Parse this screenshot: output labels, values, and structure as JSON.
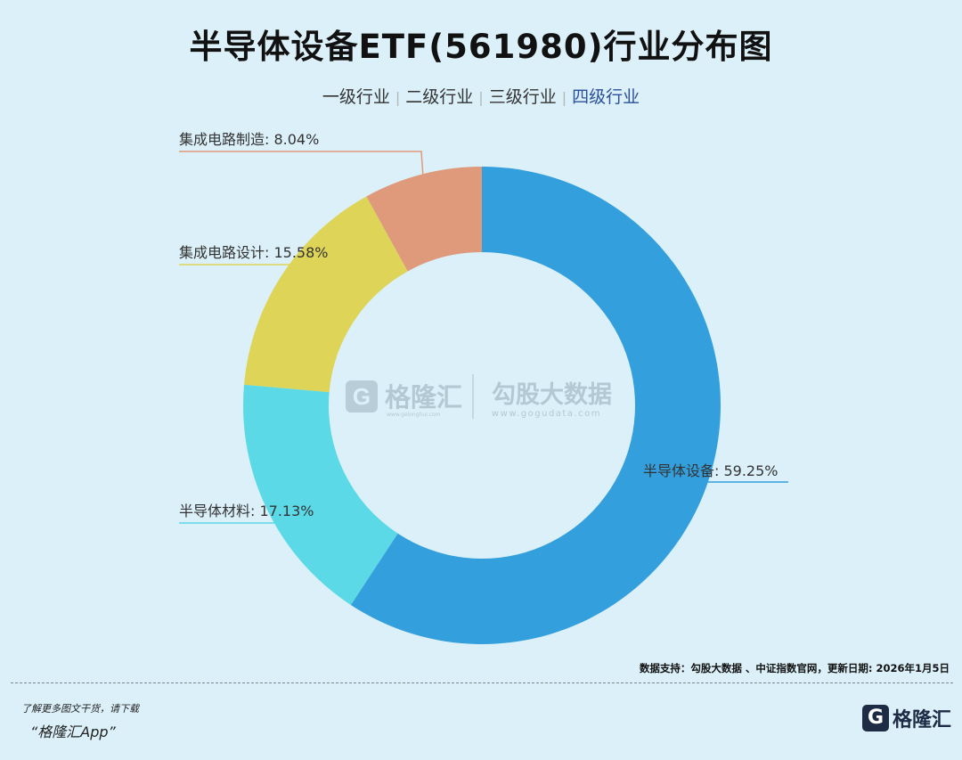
{
  "header": {
    "title": "半导体设备ETF(561980)行业分布图"
  },
  "tabs": [
    {
      "label": "一级行业",
      "active": false
    },
    {
      "label": "二级行业",
      "active": false
    },
    {
      "label": "三级行业",
      "active": false
    },
    {
      "label": "四级行业",
      "active": true
    }
  ],
  "watermark": {
    "left_name": "格隆汇",
    "left_url": "www.gelonghui.com",
    "right_name": "勾股大数据",
    "right_url": "www.gogudata.com"
  },
  "chart_data": {
    "type": "pie",
    "donut": true,
    "slices": [
      {
        "label": "半导体设备",
        "value": 59.25,
        "display": "半导体设备: 59.25%",
        "color": "#339fdc"
      },
      {
        "label": "半导体材料",
        "value": 17.13,
        "display": "半导体材料: 17.13%",
        "color": "#5bd9e6"
      },
      {
        "label": "集成电路设计",
        "value": 15.58,
        "display": "集成电路设计: 15.58%",
        "color": "#ded558"
      },
      {
        "label": "集成电路制造",
        "value": 8.04,
        "display": "集成电路制造: 8.04%",
        "color": "#df9a7c"
      }
    ],
    "unit": "%"
  },
  "footer": {
    "source": "数据支持：勾股大数据 、中证指数官网，更新日期: 2026年1月5日",
    "promo_line1": "了解更多图文干货，请下载",
    "promo_line2": "“格隆汇App”",
    "brand_logo": "G",
    "brand_name": "格隆汇"
  }
}
